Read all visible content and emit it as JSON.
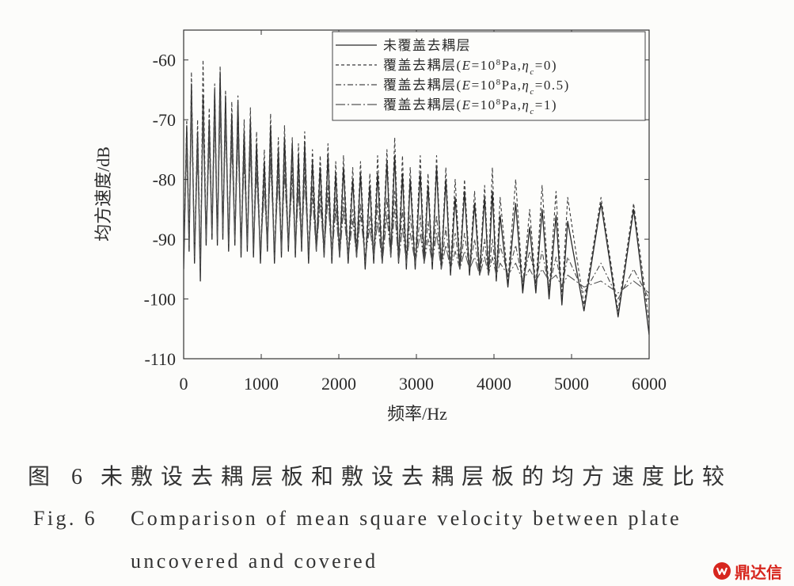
{
  "chart_data": {
    "type": "line",
    "xlabel": "频率/Hz",
    "ylabel": "均方速度/dB",
    "xlim": [
      0,
      6000
    ],
    "ylim": [
      -110,
      -55
    ],
    "xticks": [
      0,
      1000,
      2000,
      3000,
      4000,
      5000,
      6000
    ],
    "xtick_labels": [
      "0",
      "1000",
      "2000",
      "3000",
      "4000",
      "5000",
      "6000"
    ],
    "yticks": [
      -110,
      -100,
      -90,
      -80,
      -70,
      -60
    ],
    "ytick_labels": [
      "-110",
      "-100",
      "-90",
      "-80",
      "-70",
      "-60"
    ],
    "grid": false,
    "legend": "top-right",
    "x": [
      0,
      40,
      70,
      100,
      140,
      180,
      215,
      250,
      290,
      330,
      365,
      400,
      435,
      470,
      505,
      540,
      580,
      620,
      660,
      700,
      740,
      780,
      820,
      860,
      900,
      940,
      990,
      1040,
      1080,
      1120,
      1170,
      1220,
      1260,
      1300,
      1350,
      1400,
      1440,
      1480,
      1520,
      1560,
      1610,
      1660,
      1710,
      1760,
      1810,
      1860,
      1910,
      1960,
      2010,
      2060,
      2120,
      2180,
      2230,
      2280,
      2340,
      2400,
      2450,
      2500,
      2560,
      2620,
      2670,
      2720,
      2770,
      2820,
      2870,
      2920,
      2985,
      3050,
      3100,
      3150,
      3205,
      3260,
      3320,
      3380,
      3440,
      3500,
      3560,
      3620,
      3685,
      3750,
      3815,
      3880,
      3930,
      3980,
      4030,
      4080,
      4180,
      4280,
      4370,
      4460,
      4540,
      4620,
      4710,
      4800,
      4875,
      4950,
      5160,
      5380,
      5600,
      5800,
      6000
    ],
    "series": [
      {
        "name_parts": [
          [
            "未覆盖去耦层",
            ""
          ]
        ],
        "style": "solid",
        "color": "#2a2a2a",
        "values": [
          -95,
          -71,
          -92,
          -64,
          -94,
          -72,
          -97,
          -66,
          -91,
          -70,
          -90,
          -65,
          -91,
          -62,
          -90,
          -66,
          -92,
          -69,
          -91,
          -67,
          -93,
          -72,
          -92,
          -70,
          -93,
          -74,
          -94,
          -77,
          -92,
          -71,
          -94,
          -75,
          -93,
          -73,
          -92,
          -74,
          -93,
          -76,
          -92,
          -74,
          -94,
          -77,
          -92,
          -78,
          -93,
          -76,
          -94,
          -79,
          -93,
          -78,
          -94,
          -80,
          -93,
          -79,
          -95,
          -81,
          -94,
          -79,
          -94,
          -77,
          -93,
          -76,
          -94,
          -79,
          -95,
          -80,
          -95,
          -79,
          -94,
          -81,
          -95,
          -78,
          -95,
          -80,
          -96,
          -83,
          -95,
          -82,
          -96,
          -84,
          -96,
          -83,
          -96,
          -82,
          -97,
          -86,
          -98,
          -84,
          -99,
          -88,
          -99,
          -85,
          -100,
          -86,
          -101,
          -87,
          -102,
          -84,
          -103,
          -85,
          -106
        ]
      },
      {
        "name_parts": [
          [
            "覆盖去耦层(",
            ""
          ],
          [
            "E",
            "i"
          ],
          [
            "=10",
            ""
          ],
          [
            "8",
            "sup"
          ],
          [
            "Pa,",
            ""
          ],
          [
            "η",
            "i"
          ],
          [
            "c",
            "sub"
          ],
          [
            "=0)",
            ""
          ]
        ],
        "style": "dashed",
        "color": "#3a3a3a",
        "values": [
          -93,
          -70,
          -91,
          -62,
          -93,
          -70,
          -96,
          -60,
          -90,
          -68,
          -89,
          -64,
          -90,
          -61,
          -89,
          -65,
          -91,
          -67,
          -90,
          -66,
          -92,
          -70,
          -91,
          -68,
          -92,
          -72,
          -93,
          -75,
          -91,
          -69,
          -93,
          -73,
          -92,
          -71,
          -91,
          -73,
          -92,
          -74,
          -91,
          -72,
          -93,
          -75,
          -91,
          -76,
          -92,
          -74,
          -93,
          -77,
          -92,
          -76,
          -93,
          -78,
          -92,
          -77,
          -94,
          -79,
          -93,
          -76,
          -93,
          -75,
          -92,
          -73,
          -93,
          -76,
          -94,
          -78,
          -94,
          -76,
          -93,
          -79,
          -94,
          -76,
          -94,
          -78,
          -95,
          -80,
          -94,
          -80,
          -95,
          -82,
          -95,
          -81,
          -95,
          -78,
          -96,
          -83,
          -97,
          -80,
          -98,
          -85,
          -98,
          -81,
          -99,
          -82,
          -100,
          -83,
          -101,
          -83,
          -102,
          -84,
          -104
        ]
      },
      {
        "name_parts": [
          [
            "覆盖去耦层(",
            ""
          ],
          [
            "E",
            "i"
          ],
          [
            "=10",
            ""
          ],
          [
            "8",
            "sup"
          ],
          [
            "Pa,",
            ""
          ],
          [
            "η",
            "i"
          ],
          [
            "c",
            "sub"
          ],
          [
            "=0.5)",
            ""
          ]
        ],
        "style": "dash-dot",
        "color": "#4a4a4a",
        "values": [
          -92,
          -73,
          -91,
          -66,
          -93,
          -74,
          -95,
          -68,
          -90,
          -72,
          -89,
          -68,
          -90,
          -66,
          -89,
          -69,
          -91,
          -72,
          -90,
          -71,
          -92,
          -75,
          -91,
          -73,
          -92,
          -77,
          -93,
          -80,
          -91,
          -75,
          -93,
          -78,
          -92,
          -77,
          -91,
          -78,
          -92,
          -80,
          -91,
          -78,
          -93,
          -81,
          -92,
          -82,
          -93,
          -81,
          -93,
          -83,
          -93,
          -83,
          -93,
          -85,
          -93,
          -84,
          -94,
          -86,
          -93,
          -84,
          -94,
          -83,
          -93,
          -82,
          -93,
          -85,
          -94,
          -86,
          -94,
          -86,
          -94,
          -87,
          -94,
          -86,
          -95,
          -88,
          -95,
          -89,
          -95,
          -89,
          -95,
          -90,
          -96,
          -90,
          -96,
          -90,
          -96,
          -91,
          -96,
          -91,
          -97,
          -92,
          -97,
          -92,
          -98,
          -93,
          -98,
          -93,
          -99,
          -94,
          -100,
          -95,
          -100
        ]
      },
      {
        "name_parts": [
          [
            "覆盖去耦层(",
            ""
          ],
          [
            "E",
            "i"
          ],
          [
            "=10",
            ""
          ],
          [
            "8",
            "sup"
          ],
          [
            "Pa,",
            ""
          ],
          [
            "η",
            "i"
          ],
          [
            "c",
            "sub"
          ],
          [
            "=1)",
            ""
          ]
        ],
        "style": "long-dash-dot",
        "color": "#555555",
        "values": [
          -92,
          -75,
          -91,
          -68,
          -92,
          -76,
          -94,
          -70,
          -90,
          -74,
          -89,
          -70,
          -90,
          -68,
          -89,
          -71,
          -90,
          -74,
          -90,
          -73,
          -91,
          -77,
          -91,
          -75,
          -91,
          -79,
          -92,
          -82,
          -91,
          -77,
          -92,
          -80,
          -92,
          -79,
          -91,
          -80,
          -92,
          -82,
          -91,
          -80,
          -92,
          -83,
          -92,
          -84,
          -92,
          -83,
          -93,
          -85,
          -93,
          -85,
          -93,
          -87,
          -93,
          -86,
          -93,
          -88,
          -93,
          -87,
          -94,
          -86,
          -93,
          -85,
          -94,
          -88,
          -94,
          -89,
          -94,
          -89,
          -94,
          -90,
          -94,
          -89,
          -95,
          -91,
          -95,
          -92,
          -95,
          -92,
          -95,
          -93,
          -96,
          -93,
          -96,
          -93,
          -96,
          -94,
          -96,
          -94,
          -97,
          -95,
          -97,
          -95,
          -97,
          -96,
          -98,
          -96,
          -98,
          -97,
          -99,
          -97,
          -99
        ]
      }
    ]
  },
  "caption": {
    "cn_label": "图 6",
    "cn_text": "未敷设去耦层板和敷设去耦层板的均方速度比较",
    "en_label": "Fig. 6",
    "en_line1": "Comparison of mean square velocity between plate",
    "en_line2": "uncovered and covered"
  },
  "watermark": {
    "text": "鼎达信",
    "icon": "logo-icon",
    "color": "#d7261e"
  }
}
